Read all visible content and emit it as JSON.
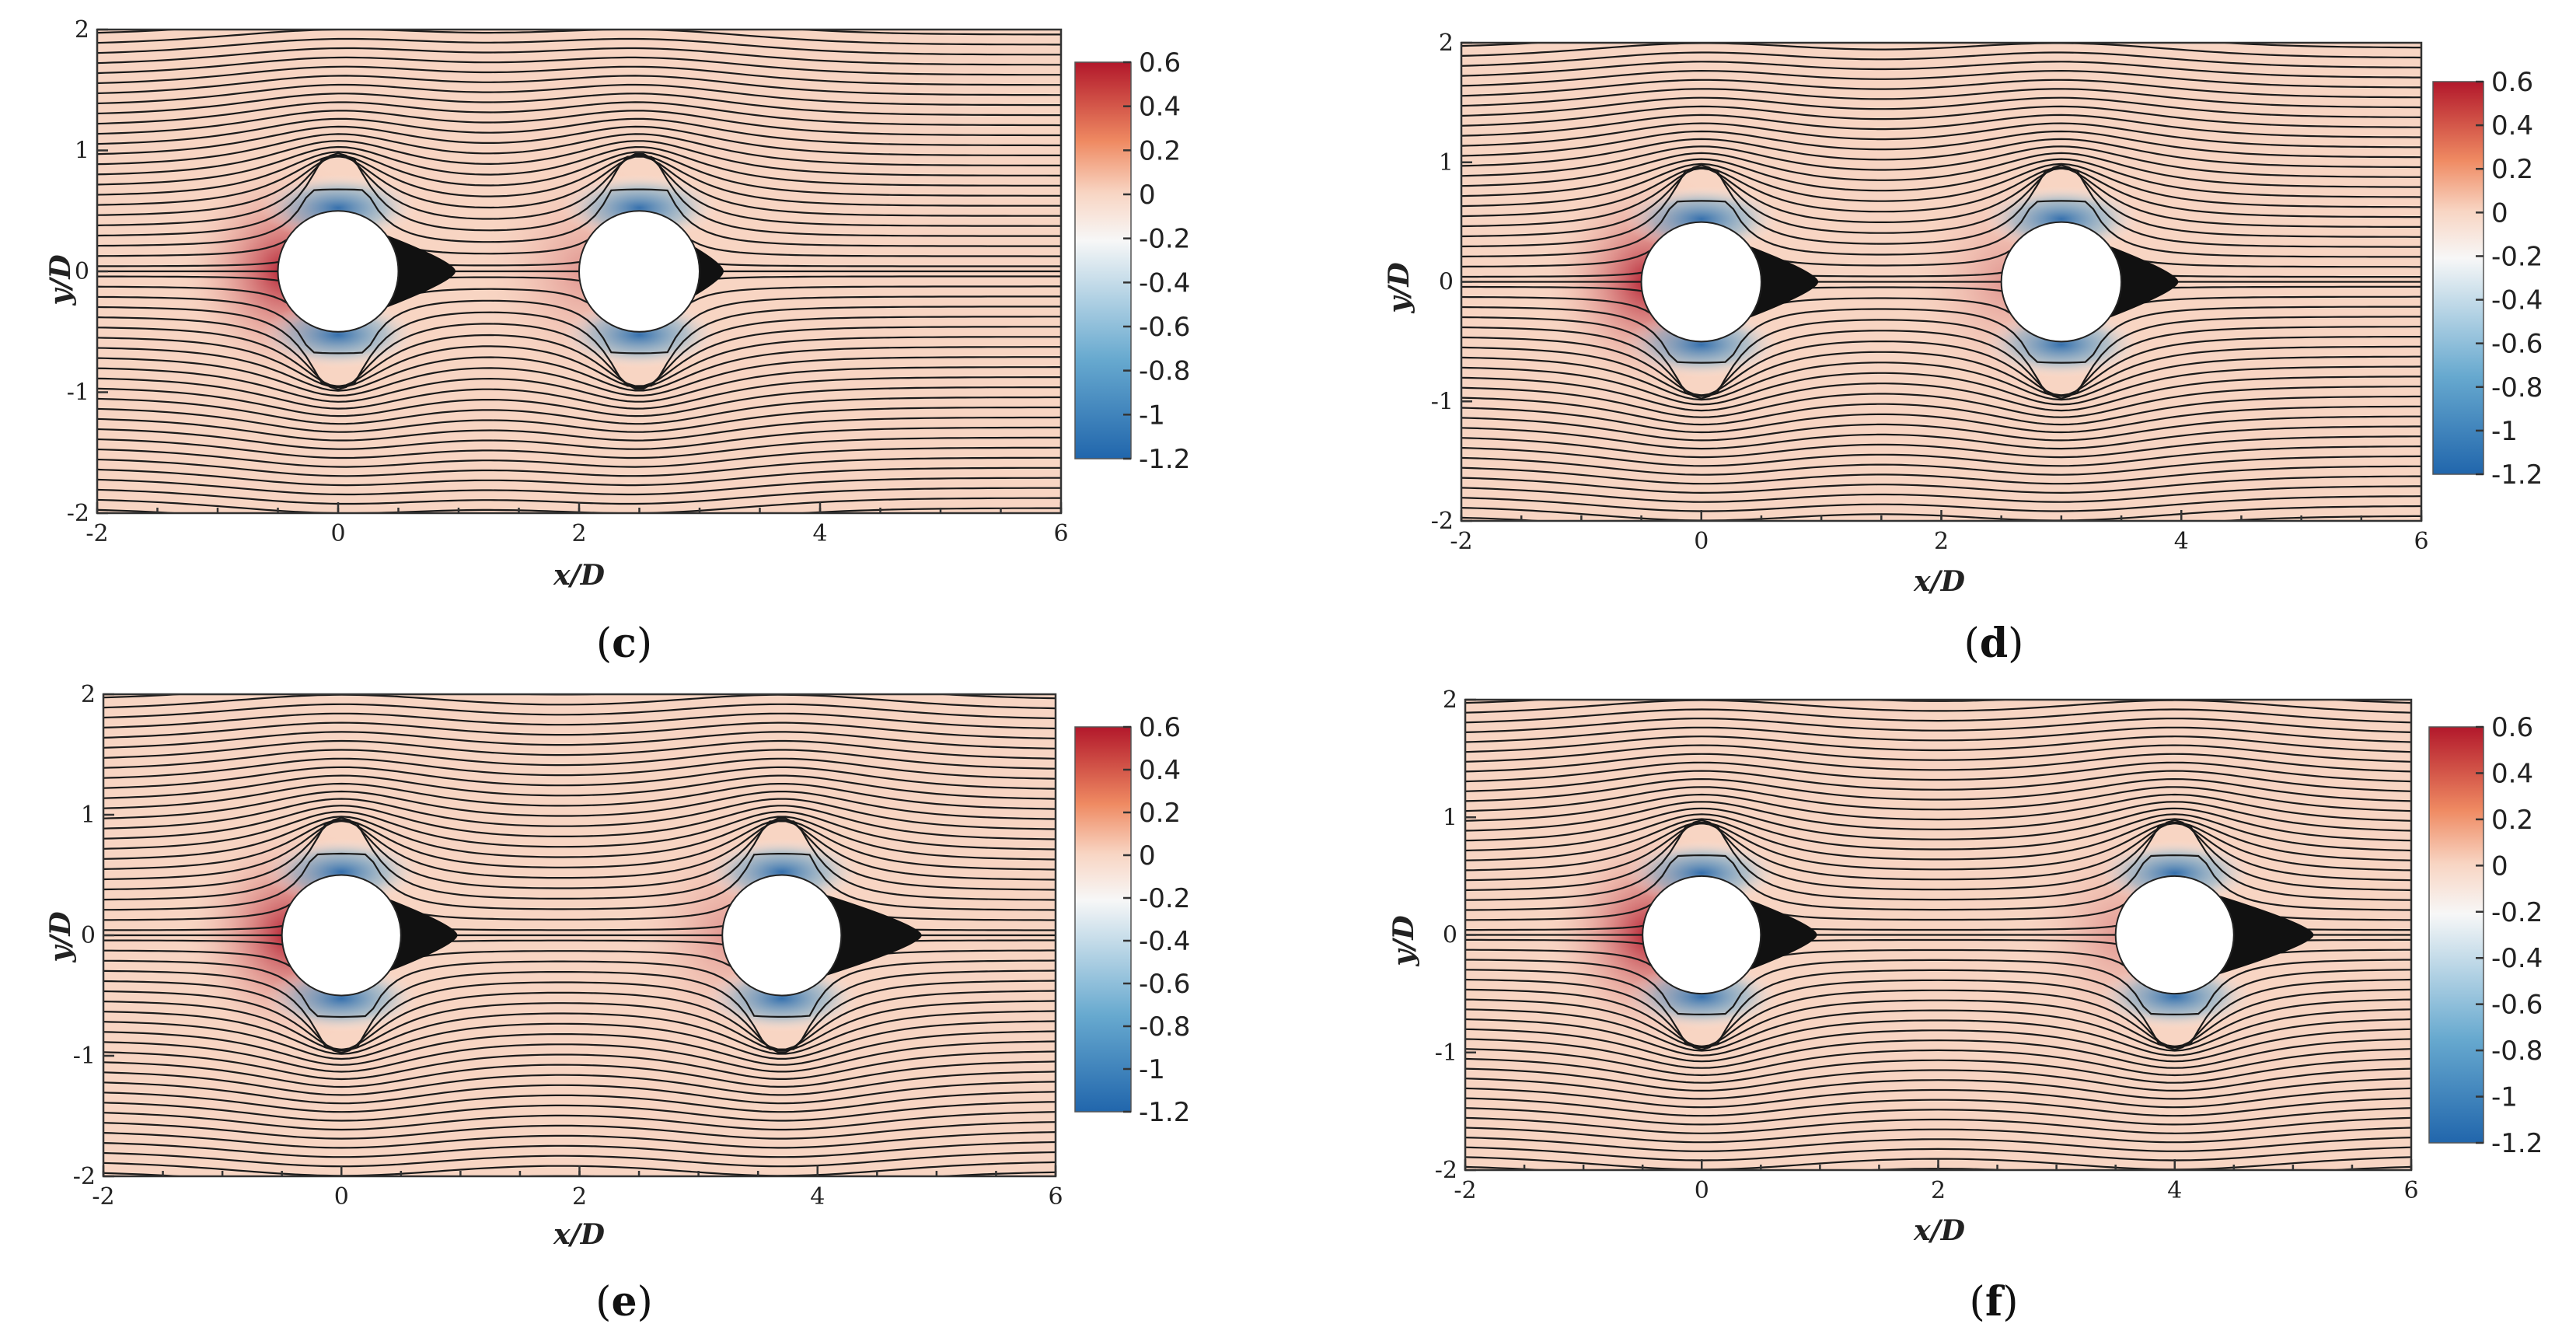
{
  "chart_data": [
    {
      "type": "heatmap",
      "panel_label": "c",
      "title": "",
      "xlabel": "x/D",
      "ylabel": "y/D",
      "xlim": [
        -2,
        6
      ],
      "ylim": [
        -2,
        2
      ],
      "xticks": [
        -2,
        0,
        2,
        4,
        6
      ],
      "yticks": [
        -2,
        -1,
        0,
        1,
        2
      ],
      "cylinders": [
        {
          "x": 0,
          "y": 0,
          "d": 1
        },
        {
          "x": 2.5,
          "y": 0,
          "d": 1
        }
      ],
      "colorbar": {
        "range": [
          -1.2,
          0.6
        ],
        "ticks": [
          "0.6",
          "0.4",
          "0.2",
          "0",
          "-0.2",
          "-0.4",
          "-0.6",
          "-0.8",
          "-1",
          "-1.2"
        ]
      },
      "streamlines": true,
      "grid": false
    },
    {
      "type": "heatmap",
      "panel_label": "d",
      "title": "",
      "xlabel": "x/D",
      "ylabel": "y/D",
      "xlim": [
        -2,
        6
      ],
      "ylim": [
        -2,
        2
      ],
      "xticks": [
        -2,
        0,
        2,
        4,
        6
      ],
      "yticks": [
        -2,
        -1,
        0,
        1,
        2
      ],
      "cylinders": [
        {
          "x": 0,
          "y": 0,
          "d": 1
        },
        {
          "x": 3,
          "y": 0,
          "d": 1
        }
      ],
      "colorbar": {
        "range": [
          -1.2,
          0.6
        ],
        "ticks": [
          "0.6",
          "0.4",
          "0.2",
          "0",
          "-0.2",
          "-0.4",
          "-0.6",
          "-0.8",
          "-1",
          "-1.2"
        ]
      },
      "streamlines": true,
      "grid": false
    },
    {
      "type": "heatmap",
      "panel_label": "e",
      "title": "",
      "xlabel": "x/D",
      "ylabel": "y/D",
      "xlim": [
        -2,
        6
      ],
      "ylim": [
        -2,
        2
      ],
      "xticks": [
        -2,
        0,
        2,
        4,
        6
      ],
      "yticks": [
        -2,
        -1,
        0,
        1,
        2
      ],
      "cylinders": [
        {
          "x": 0,
          "y": 0,
          "d": 1
        },
        {
          "x": 3.7,
          "y": 0,
          "d": 1
        }
      ],
      "colorbar": {
        "range": [
          -1.2,
          0.6
        ],
        "ticks": [
          "0.6",
          "0.4",
          "0.2",
          "0",
          "-0.2",
          "-0.4",
          "-0.6",
          "-0.8",
          "-1",
          "-1.2"
        ]
      },
      "streamlines": true,
      "grid": false
    },
    {
      "type": "heatmap",
      "panel_label": "f",
      "title": "",
      "xlabel": "x/D",
      "ylabel": "y/D",
      "xlim": [
        -2,
        6
      ],
      "ylim": [
        -2,
        2
      ],
      "xticks": [
        -2,
        0,
        2,
        4,
        6
      ],
      "yticks": [
        -2,
        -1,
        0,
        1,
        2
      ],
      "cylinders": [
        {
          "x": 0,
          "y": 0,
          "d": 1
        },
        {
          "x": 4,
          "y": 0,
          "d": 1
        }
      ],
      "colorbar": {
        "range": [
          -1.2,
          0.6
        ],
        "ticks": [
          "0.6",
          "0.4",
          "0.2",
          "0",
          "-0.2",
          "-0.4",
          "-0.6",
          "-0.8",
          "-1",
          "-1.2"
        ]
      },
      "streamlines": true,
      "grid": false
    }
  ],
  "colors": {
    "high": "#b2182b",
    "mid_high": "#ef8a62",
    "freestream": "#f8d5c3",
    "neutral": "#f7f7f7",
    "mid_low": "#67a9cf",
    "low": "#2166ac"
  }
}
